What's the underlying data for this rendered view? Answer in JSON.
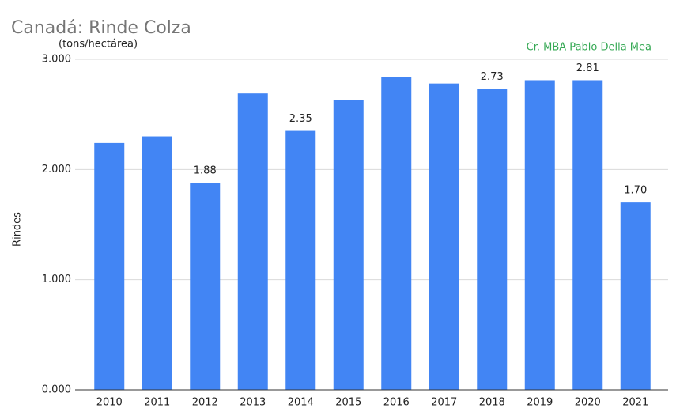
{
  "chart_data": {
    "type": "bar",
    "title": "Canadá: Rinde Colza",
    "subtitle": "(tons/hectárea)",
    "annotation": "Cr. MBA Pablo Della Mea",
    "y_label": "Rindes",
    "categories": [
      "2010",
      "2011",
      "2012",
      "2013",
      "2014",
      "2015",
      "2016",
      "2017",
      "2018",
      "2019",
      "2020",
      "2021"
    ],
    "values": [
      2.24,
      2.3,
      1.88,
      2.69,
      2.35,
      2.63,
      2.84,
      2.78,
      2.73,
      2.81,
      2.81,
      1.7
    ],
    "value_labels": [
      null,
      null,
      "1.88",
      null,
      "2.35",
      null,
      null,
      null,
      "2.73",
      null,
      "2.81",
      "1.70"
    ],
    "color": "#4285f4",
    "ylim": [
      0,
      3
    ],
    "yticks": [
      {
        "value": 0,
        "label": "0.000"
      },
      {
        "value": 1,
        "label": "1.000"
      },
      {
        "value": 2,
        "label": "2.000"
      },
      {
        "value": 3,
        "label": "3.000"
      }
    ],
    "grid": true
  }
}
